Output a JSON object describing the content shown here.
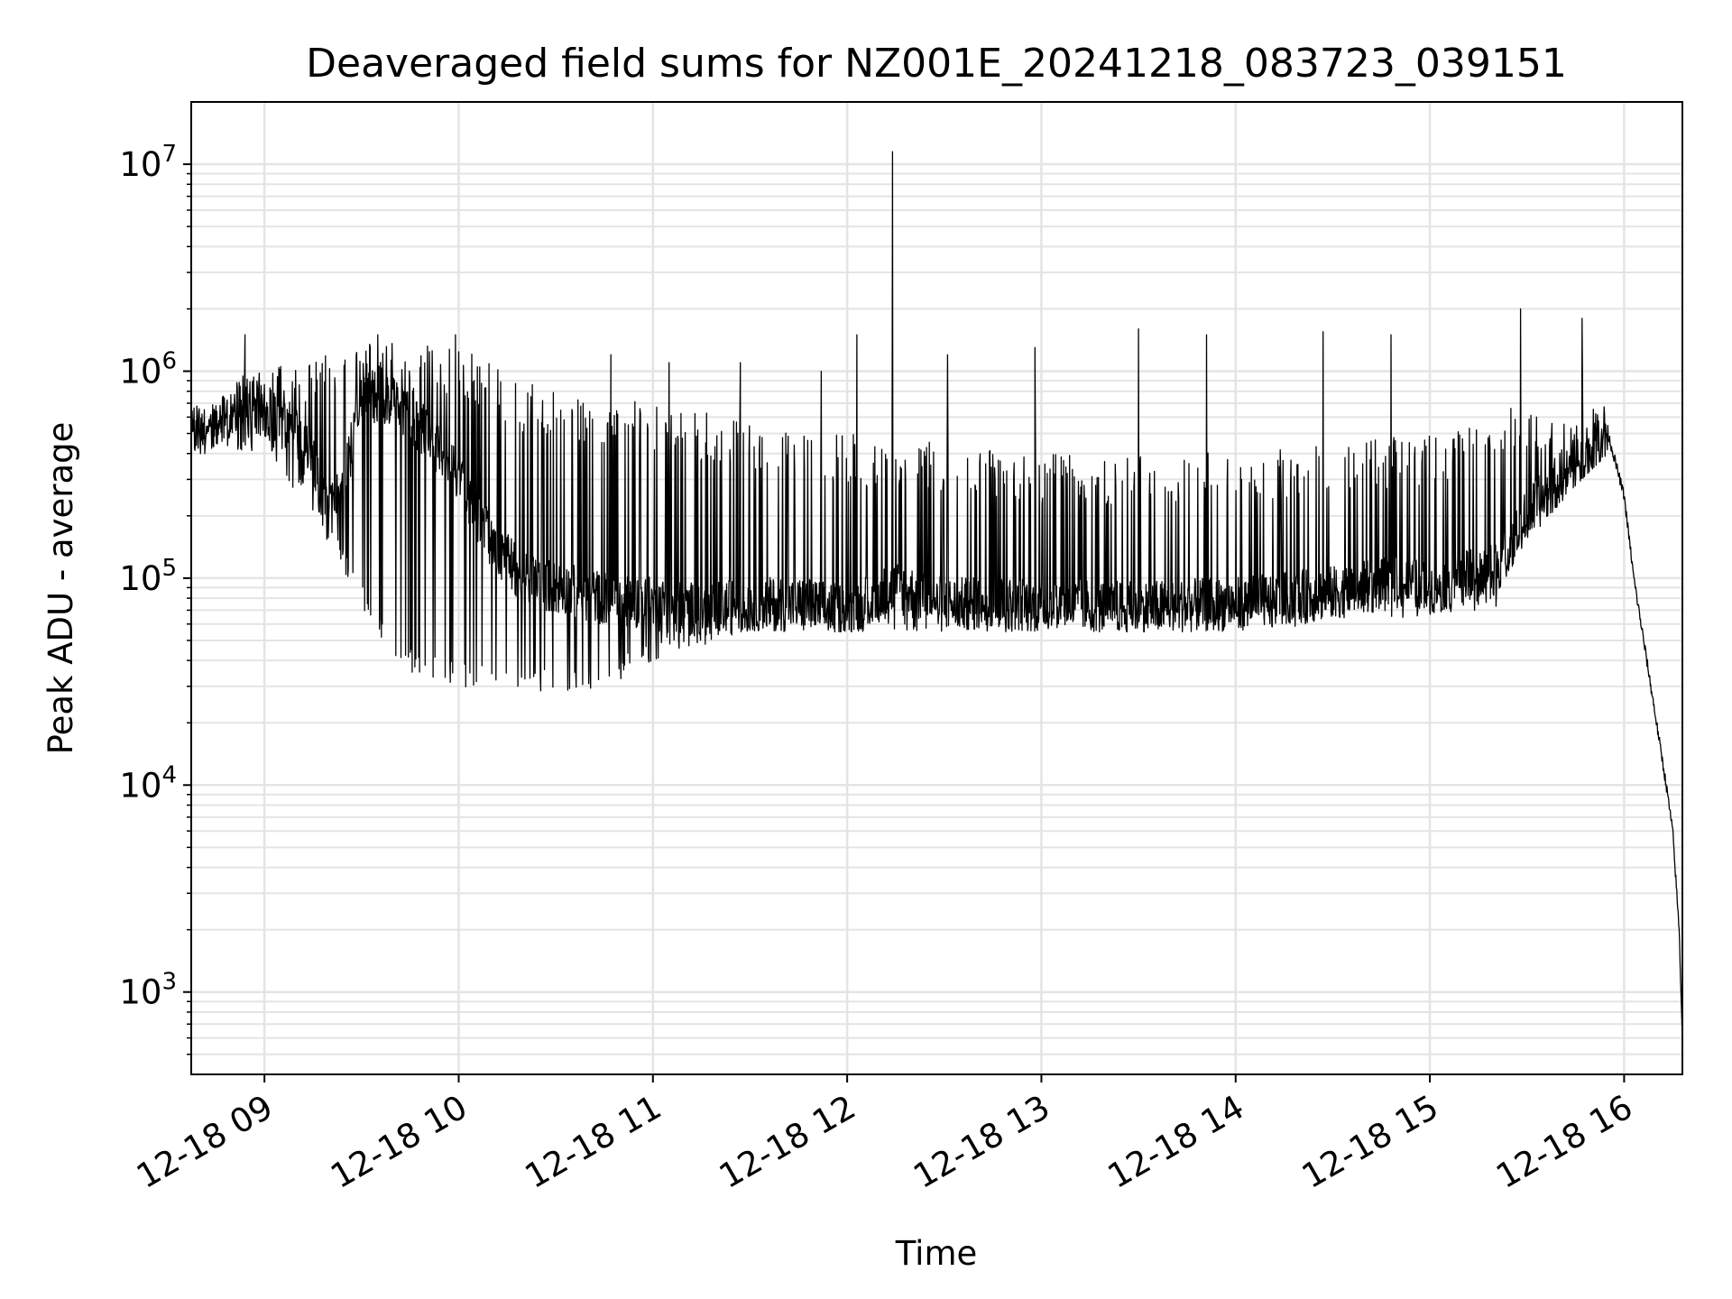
{
  "chart_data": {
    "type": "line",
    "title": "Deaveraged field sums for NZ001E_20241218_083723_039151",
    "xlabel": "Time",
    "ylabel": "Peak ADU - average",
    "yscale": "log",
    "grid": true,
    "legend": "none",
    "colors": {
      "series": "#000000",
      "grid": "#e4e4e4",
      "axes": "#000000",
      "background": "#ffffff"
    },
    "x_range": [
      "2024-12-18 08:37:23",
      "2024-12-18 16:18:00"
    ],
    "ylim": [
      400,
      20000000
    ],
    "x_ticks": [
      {
        "value": "2024-12-18 09:00",
        "label": "12-18 09"
      },
      {
        "value": "2024-12-18 10:00",
        "label": "12-18 10"
      },
      {
        "value": "2024-12-18 11:00",
        "label": "12-18 11"
      },
      {
        "value": "2024-12-18 12:00",
        "label": "12-18 12"
      },
      {
        "value": "2024-12-18 13:00",
        "label": "12-18 13"
      },
      {
        "value": "2024-12-18 14:00",
        "label": "12-18 14"
      },
      {
        "value": "2024-12-18 15:00",
        "label": "12-18 15"
      },
      {
        "value": "2024-12-18 16:00",
        "label": "12-18 16"
      }
    ],
    "y_ticks": [
      {
        "value": 1000,
        "base": "10",
        "exp": "3"
      },
      {
        "value": 10000,
        "base": "10",
        "exp": "4"
      },
      {
        "value": 100000,
        "base": "10",
        "exp": "5"
      },
      {
        "value": 1000000,
        "base": "10",
        "exp": "6"
      },
      {
        "value": 10000000,
        "base": "10",
        "exp": "7"
      }
    ],
    "series": [
      {
        "x": [
          "2024-12-18 08:37:23",
          "2024-12-18 08:45:00",
          "2024-12-18 08:53:00",
          "2024-12-18 09:00:00",
          "2024-12-18 09:10:00",
          "2024-12-18 09:15:00",
          "2024-12-18 09:20:00",
          "2024-12-18 09:25:00",
          "2024-12-18 09:30:00",
          "2024-12-18 09:40:00",
          "2024-12-18 09:50:00",
          "2024-12-18 10:00:00",
          "2024-12-18 10:10:00",
          "2024-12-18 10:20:00",
          "2024-12-18 10:30:00",
          "2024-12-18 10:45:00",
          "2024-12-18 11:00:00",
          "2024-12-18 11:15:00",
          "2024-12-18 11:30:00",
          "2024-12-18 11:45:00",
          "2024-12-18 12:00:00",
          "2024-12-18 12:15:00",
          "2024-12-18 12:30:00",
          "2024-12-18 13:00:00",
          "2024-12-18 13:30:00",
          "2024-12-18 14:00:00",
          "2024-12-18 14:30:00",
          "2024-12-18 14:50:00",
          "2024-12-18 15:00:00",
          "2024-12-18 15:20:00",
          "2024-12-18 15:30:00",
          "2024-12-18 15:40:00",
          "2024-12-18 15:50:00",
          "2024-12-18 15:55:00",
          "2024-12-18 16:00:00",
          "2024-12-18 16:03:00",
          "2024-12-18 16:07:00",
          "2024-12-18 16:10:00",
          "2024-12-18 16:13:00",
          "2024-12-18 16:15:00",
          "2024-12-18 16:17:00",
          "2024-12-18 16:18:00"
        ],
        "y": [
          500000,
          550000,
          700000,
          650000,
          500000,
          350000,
          200000,
          300000,
          800000,
          700000,
          500000,
          300000,
          150000,
          100000,
          90000,
          80000,
          75000,
          70000,
          75000,
          75000,
          70000,
          90000,
          75000,
          75000,
          72000,
          75000,
          85000,
          95000,
          90000,
          110000,
          200000,
          300000,
          400000,
          500000,
          250000,
          100000,
          40000,
          20000,
          10000,
          6000,
          2000,
          600
        ],
        "lower_envelope": {
          "x": [
            "2024-12-18 08:37:23",
            "2024-12-18 09:00:00",
            "2024-12-18 09:15:00",
            "2024-12-18 09:25:00",
            "2024-12-18 09:35:00",
            "2024-12-18 09:45:00",
            "2024-12-18 10:00:00",
            "2024-12-18 10:15:00",
            "2024-12-18 10:30:00",
            "2024-12-18 10:45:00",
            "2024-12-18 11:00:00",
            "2024-12-18 11:30:00",
            "2024-12-18 12:00:00",
            "2024-12-18 13:00:00",
            "2024-12-18 14:00:00",
            "2024-12-18 15:00:00",
            "2024-12-18 15:20:00",
            "2024-12-18 15:30:00",
            "2024-12-18 15:45:00",
            "2024-12-18 15:55:00"
          ],
          "y": [
            400000,
            400000,
            200000,
            100000,
            50000,
            35000,
            30000,
            28000,
            28000,
            28000,
            40000,
            55000,
            55000,
            55000,
            55000,
            65000,
            70000,
            150000,
            280000,
            400000
          ]
        },
        "upper_envelope": {
          "x": [
            "2024-12-18 08:37:23",
            "2024-12-18 08:55:00",
            "2024-12-18 09:20:00",
            "2024-12-18 09:35:00",
            "2024-12-18 10:00:00",
            "2024-12-18 10:20:00",
            "2024-12-18 10:40:00",
            "2024-12-18 11:00:00",
            "2024-12-18 11:30:00",
            "2024-12-18 12:00:00",
            "2024-12-18 12:30:00",
            "2024-12-18 13:00:00",
            "2024-12-18 13:30:00",
            "2024-12-18 14:00:00",
            "2024-12-18 14:30:00",
            "2024-12-18 15:00:00",
            "2024-12-18 15:30:00",
            "2024-12-18 15:55:00"
          ],
          "y": [
            650000,
            1000000,
            1200000,
            1400000,
            1300000,
            900000,
            800000,
            700000,
            600000,
            500000,
            450000,
            400000,
            400000,
            420000,
            450000,
            500000,
            700000,
            700000
          ]
        },
        "spikes": [
          {
            "x": "2024-12-18 08:54:00",
            "y": 1500000
          },
          {
            "x": "2024-12-18 09:35:00",
            "y": 1500000
          },
          {
            "x": "2024-12-18 09:59:00",
            "y": 1500000
          },
          {
            "x": "2024-12-18 10:47:00",
            "y": 1200000
          },
          {
            "x": "2024-12-18 11:05:00",
            "y": 1100000
          },
          {
            "x": "2024-12-18 11:27:00",
            "y": 1100000
          },
          {
            "x": "2024-12-18 11:52:00",
            "y": 1000000
          },
          {
            "x": "2024-12-18 12:03:00",
            "y": 1500000
          },
          {
            "x": "2024-12-18 12:14:00",
            "y": 11500000
          },
          {
            "x": "2024-12-18 12:31:00",
            "y": 1200000
          },
          {
            "x": "2024-12-18 12:58:00",
            "y": 1300000
          },
          {
            "x": "2024-12-18 13:30:00",
            "y": 1600000
          },
          {
            "x": "2024-12-18 13:51:00",
            "y": 1500000
          },
          {
            "x": "2024-12-18 14:27:00",
            "y": 1550000
          },
          {
            "x": "2024-12-18 14:48:00",
            "y": 1500000
          },
          {
            "x": "2024-12-18 15:28:00",
            "y": 2000000
          },
          {
            "x": "2024-12-18 15:47:00",
            "y": 1800000
          }
        ]
      }
    ]
  }
}
